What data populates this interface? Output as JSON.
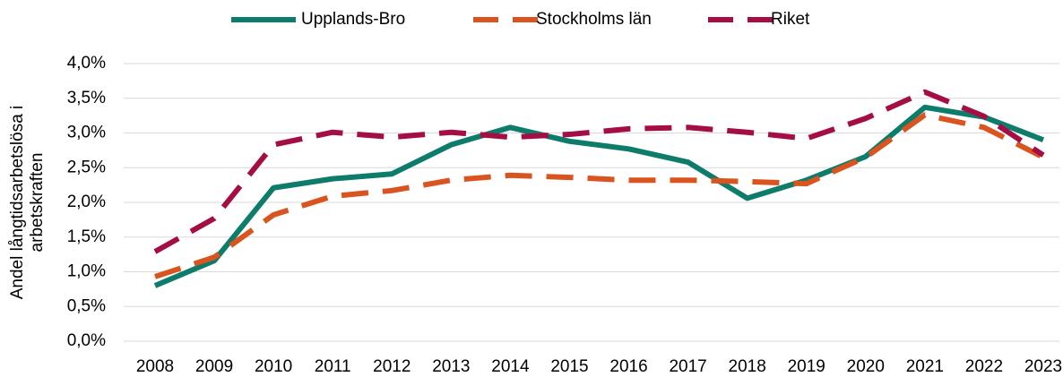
{
  "chart_data": {
    "type": "line",
    "ylabel": [
      "Andel långtidsarbetslösa i",
      "arbetskraften"
    ],
    "categories": [
      "2008",
      "2009",
      "2010",
      "2011",
      "2012",
      "2013",
      "2014",
      "2015",
      "2016",
      "2017",
      "2018",
      "2019",
      "2020",
      "2021",
      "2022",
      "2023"
    ],
    "series": [
      {
        "name": "Upplands-Bro",
        "color": "#0e7c6b",
        "dashed": false,
        "values": [
          0.8,
          1.16,
          2.21,
          2.34,
          2.41,
          2.83,
          3.08,
          2.88,
          2.77,
          2.58,
          2.06,
          2.32,
          2.66,
          3.37,
          3.23,
          2.9
        ]
      },
      {
        "name": "Stockholms län",
        "color": "#d9541e",
        "dashed": true,
        "values": [
          0.93,
          1.21,
          1.82,
          2.09,
          2.17,
          2.32,
          2.39,
          2.36,
          2.32,
          2.32,
          2.3,
          2.27,
          2.65,
          3.26,
          3.08,
          2.65
        ]
      },
      {
        "name": "Riket",
        "color": "#a50d45",
        "dashed": true,
        "values": [
          1.29,
          1.77,
          2.83,
          3.01,
          2.94,
          3.01,
          2.94,
          2.98,
          3.06,
          3.08,
          3.01,
          2.92,
          3.21,
          3.59,
          3.24,
          2.68
        ]
      }
    ],
    "ylim": [
      0,
      4
    ],
    "yticks": [
      {
        "value": 0,
        "label": "0,0%"
      },
      {
        "value": 0.5,
        "label": "0,5%"
      },
      {
        "value": 1,
        "label": "1,0%"
      },
      {
        "value": 1.5,
        "label": "1,5%"
      },
      {
        "value": 2,
        "label": "2,0%"
      },
      {
        "value": 2.5,
        "label": "2,5%"
      },
      {
        "value": 3,
        "label": "3,0%"
      },
      {
        "value": 3.5,
        "label": "3,5%"
      },
      {
        "value": 4,
        "label": "4,0%"
      }
    ],
    "grid": true,
    "legend": "top"
  }
}
